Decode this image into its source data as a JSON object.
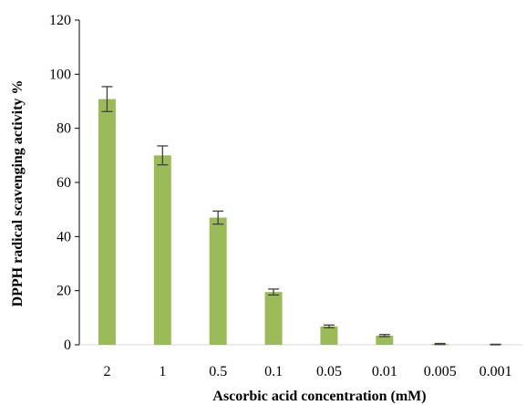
{
  "chart_data": {
    "type": "bar",
    "title": "",
    "xlabel": "Ascorbic acid concentration (mM)",
    "ylabel": "DPPH radical scavenging activity %",
    "categories": [
      "2",
      "1",
      "0.5",
      "0.1",
      "0.05",
      "0.01",
      "0.005",
      "0.001"
    ],
    "series": [
      {
        "values": [
          90.8,
          70.0,
          47.0,
          19.5,
          6.8,
          3.4,
          0.3,
          0.1
        ],
        "errors": [
          4.6,
          3.5,
          2.4,
          1.1,
          0.5,
          0.4,
          0.2,
          0.1
        ]
      }
    ],
    "ylim": [
      0,
      120
    ],
    "yticks": [
      "0",
      "20",
      "40",
      "60",
      "80",
      "100",
      "120"
    ],
    "grid": false,
    "legend": "none",
    "colors": {
      "bar": "#9bbb59",
      "error_bar": "#404040",
      "axis": "#000000"
    }
  }
}
